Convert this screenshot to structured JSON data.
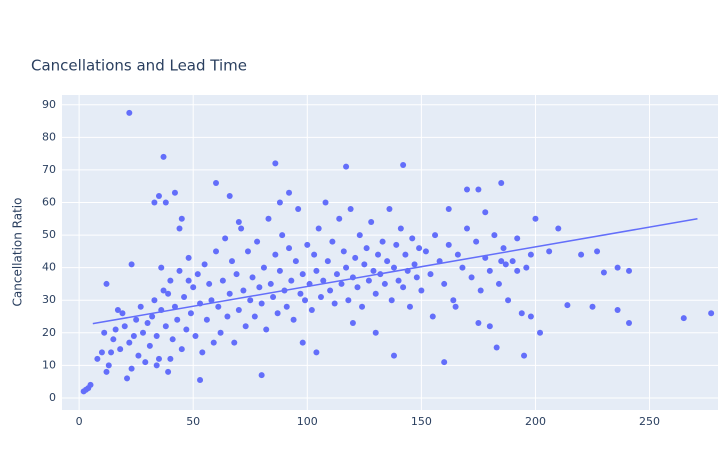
{
  "chart_data": {
    "type": "scatter",
    "title": "Cancellations and Lead Time",
    "y_label": "Cancellation Ratio",
    "xlim": [
      -7.5,
      280
    ],
    "ylim": [
      -3.7,
      93
    ],
    "xticks": [
      0,
      50,
      100,
      150,
      200,
      250
    ],
    "yticks": [
      0,
      10,
      20,
      30,
      40,
      50,
      60,
      70,
      80,
      90
    ],
    "grid": true,
    "series": [
      {
        "mode": "markers",
        "color": "#636efa",
        "x": [
          8,
          10,
          12,
          15,
          16,
          18,
          19,
          20,
          21,
          22,
          24,
          25,
          26,
          27,
          28,
          29,
          30,
          17,
          23,
          11,
          31,
          32,
          33,
          34,
          35,
          36,
          37,
          38,
          39,
          40,
          41,
          42,
          43,
          44,
          45,
          46,
          47,
          48,
          49,
          50,
          51,
          52,
          53,
          54,
          55,
          56,
          57,
          58,
          59,
          60,
          44,
          45,
          33,
          35,
          38,
          42,
          48,
          36,
          34,
          39,
          61,
          62,
          63,
          64,
          65,
          66,
          67,
          68,
          69,
          70,
          71,
          72,
          73,
          74,
          75,
          76,
          77,
          78,
          79,
          80,
          81,
          82,
          83,
          84,
          85,
          86,
          87,
          88,
          89,
          90,
          91,
          92,
          93,
          94,
          95,
          96,
          97,
          98,
          99,
          100,
          66,
          70,
          88,
          92,
          101,
          102,
          103,
          104,
          105,
          106,
          107,
          108,
          109,
          110,
          111,
          112,
          113,
          114,
          115,
          116,
          117,
          118,
          119,
          120,
          121,
          122,
          123,
          124,
          125,
          126,
          127,
          128,
          129,
          130,
          131,
          132,
          133,
          134,
          135,
          136,
          137,
          138,
          139,
          140,
          141,
          142,
          143,
          144,
          145,
          146,
          147,
          148,
          149,
          150,
          104,
          98,
          120,
          130,
          152,
          154,
          156,
          158,
          160,
          162,
          164,
          166,
          168,
          170,
          172,
          174,
          176,
          178,
          180,
          182,
          184,
          186,
          188,
          190,
          192,
          194,
          196,
          198,
          155,
          165,
          175,
          162,
          178,
          3,
          5,
          22,
          37,
          86,
          117,
          142,
          185,
          175,
          170,
          23,
          12,
          60,
          2,
          4,
          13,
          14,
          40,
          53,
          80,
          160,
          138,
          195,
          265,
          277,
          241,
          236,
          225,
          214,
          200,
          210,
          227,
          230,
          236,
          241,
          220,
          206,
          187,
          192,
          185,
          180,
          183,
          198,
          202
        ],
        "y": [
          12,
          14,
          8,
          18,
          21,
          15,
          26,
          22,
          6,
          17,
          19,
          24,
          13,
          28,
          20,
          11,
          23,
          27,
          9,
          20,
          16,
          25,
          30,
          19,
          12,
          27,
          33,
          22,
          8,
          36,
          18,
          28,
          24,
          39,
          15,
          31,
          21,
          43,
          26,
          34,
          19,
          38,
          29,
          14,
          41,
          24,
          35,
          30,
          17,
          45,
          52,
          55,
          60,
          62,
          60,
          63,
          36,
          40,
          10,
          32,
          28,
          20,
          36,
          49,
          25,
          32,
          42,
          17,
          38,
          27,
          52,
          33,
          22,
          45,
          30,
          37,
          25,
          48,
          34,
          29,
          40,
          21,
          55,
          35,
          31,
          44,
          26,
          39,
          50,
          33,
          28,
          46,
          36,
          24,
          42,
          58,
          32,
          38,
          30,
          47,
          62,
          54,
          60,
          63,
          35,
          27,
          44,
          39,
          52,
          31,
          36,
          60,
          42,
          33,
          48,
          29,
          38,
          55,
          35,
          45,
          40,
          30,
          58,
          37,
          43,
          34,
          50,
          28,
          41,
          46,
          36,
          54,
          39,
          32,
          44,
          38,
          48,
          35,
          42,
          58,
          30,
          40,
          47,
          36,
          52,
          34,
          44,
          39,
          28,
          49,
          41,
          37,
          46,
          33,
          14,
          17,
          23,
          20,
          45,
          38,
          50,
          42,
          35,
          47,
          30,
          44,
          40,
          52,
          37,
          48,
          33,
          43,
          39,
          50,
          35,
          46,
          30,
          42,
          49,
          26,
          40,
          44,
          25,
          28,
          23,
          58,
          57,
          2.5,
          4,
          87.5,
          74,
          72,
          71,
          71.5,
          66,
          64,
          64,
          41,
          35,
          66,
          2,
          3,
          10,
          14,
          12,
          5.5,
          7,
          11,
          13,
          13,
          24.5,
          26,
          23,
          27,
          28,
          28.5,
          55,
          52,
          45,
          38.5,
          40,
          39,
          44,
          45,
          41,
          39,
          42,
          22,
          15.5,
          25,
          20
        ]
      },
      {
        "mode": "lines",
        "color": "#636efa",
        "x": [
          6,
          271
        ],
        "y": [
          22.8,
          55
        ]
      }
    ]
  }
}
